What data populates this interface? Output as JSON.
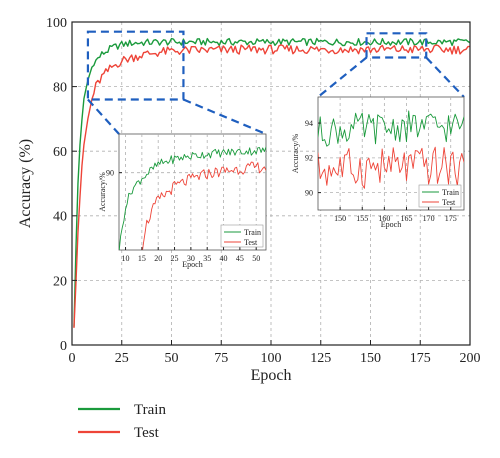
{
  "colors": {
    "train": "#1a9a3c",
    "test": "#ee4438",
    "zoom_box": "#1f5fbf"
  },
  "chart_data": [
    {
      "type": "line",
      "role": "main",
      "xlabel": "Epoch",
      "ylabel": "Accuracy (%)",
      "xlim": [
        0,
        200
      ],
      "ylim": [
        0,
        100
      ],
      "xticks": [
        0,
        25,
        50,
        75,
        100,
        125,
        150,
        175,
        200
      ],
      "yticks": [
        0,
        20,
        40,
        60,
        80,
        100
      ],
      "grid": true,
      "legend_position": "below-left",
      "series": [
        {
          "name": "Train",
          "color": "#1a9a3c",
          "x": [
            1,
            2,
            3,
            4,
            5,
            6,
            8,
            10,
            12,
            15,
            20,
            25,
            30,
            35,
            40,
            45,
            50,
            60,
            70,
            80,
            90,
            100,
            110,
            120,
            130,
            140,
            150,
            160,
            170,
            180,
            190,
            200
          ],
          "values": [
            6,
            30,
            50,
            62,
            70,
            76,
            82,
            86,
            88,
            90,
            92,
            93,
            93.5,
            93.6,
            93.7,
            93.8,
            93.8,
            93.8,
            93.8,
            93.8,
            93.8,
            93.8,
            93.8,
            93.8,
            93.8,
            93.8,
            93.8,
            93.8,
            93.8,
            93.8,
            93.8,
            93.8
          ]
        },
        {
          "name": "Test",
          "color": "#ee4438",
          "x": [
            1,
            2,
            3,
            4,
            5,
            6,
            8,
            10,
            12,
            15,
            20,
            25,
            30,
            35,
            40,
            45,
            50,
            60,
            70,
            80,
            90,
            100,
            110,
            120,
            130,
            140,
            150,
            160,
            170,
            180,
            190,
            200
          ],
          "values": [
            6,
            20,
            35,
            46,
            55,
            62,
            70,
            76,
            80,
            83,
            86,
            88,
            89,
            89.8,
            90.3,
            90.7,
            91,
            91.2,
            91.3,
            91.4,
            91.5,
            91.5,
            91.5,
            91.5,
            91.5,
            91.5,
            91.5,
            91.5,
            91.5,
            91.5,
            91.5,
            91.5
          ]
        }
      ]
    },
    {
      "type": "line",
      "role": "inset-early",
      "xlabel": "Epoch",
      "ylabel": "Accuracy/%",
      "xlim": [
        8,
        53
      ],
      "ylim": [
        76,
        97
      ],
      "xticks": [
        10,
        15,
        20,
        25,
        30,
        35,
        40,
        45,
        50
      ],
      "yticks": [
        90
      ],
      "grid": true,
      "legend_position": "bottom-right",
      "series": [
        {
          "name": "Train",
          "color": "#1a9a3c",
          "x": [
            8,
            9,
            10,
            12,
            15,
            18,
            20,
            25,
            30,
            35,
            40,
            45,
            50,
            53
          ],
          "values": [
            76,
            80,
            84,
            87,
            89,
            90.5,
            91.5,
            92.5,
            93,
            93.4,
            93.6,
            93.8,
            94,
            94
          ]
        },
        {
          "name": "Test",
          "color": "#ee4438",
          "x": [
            15,
            16,
            18,
            20,
            25,
            30,
            35,
            40,
            45,
            50,
            53
          ],
          "values": [
            76,
            80,
            83,
            85,
            87.5,
            88.8,
            89.8,
            90.3,
            90.7,
            91,
            91
          ]
        }
      ]
    },
    {
      "type": "line",
      "role": "inset-late",
      "xlabel": "Epoch",
      "ylabel": "Accuracy/%",
      "xlim": [
        145,
        178
      ],
      "ylim": [
        89,
        95.5
      ],
      "xticks": [
        150,
        155,
        160,
        165,
        170,
        175
      ],
      "yticks": [
        90,
        92,
        94
      ],
      "grid": true,
      "legend_position": "bottom-right",
      "series": [
        {
          "name": "Train",
          "color": "#1a9a3c",
          "x": [
            145,
            150,
            155,
            160,
            165,
            170,
            175,
            178
          ],
          "values": [
            93.5,
            93.6,
            93.7,
            93.7,
            93.8,
            93.8,
            93.8,
            93.8
          ]
        },
        {
          "name": "Test",
          "color": "#ee4438",
          "x": [
            145,
            150,
            155,
            160,
            165,
            170,
            175,
            178
          ],
          "values": [
            91.3,
            91.4,
            91.4,
            91.5,
            91.5,
            91.5,
            91.5,
            91.5
          ]
        }
      ]
    }
  ],
  "legend": [
    {
      "label": "Train",
      "color": "#1a9a3c"
    },
    {
      "label": "Test",
      "color": "#ee4438"
    }
  ]
}
